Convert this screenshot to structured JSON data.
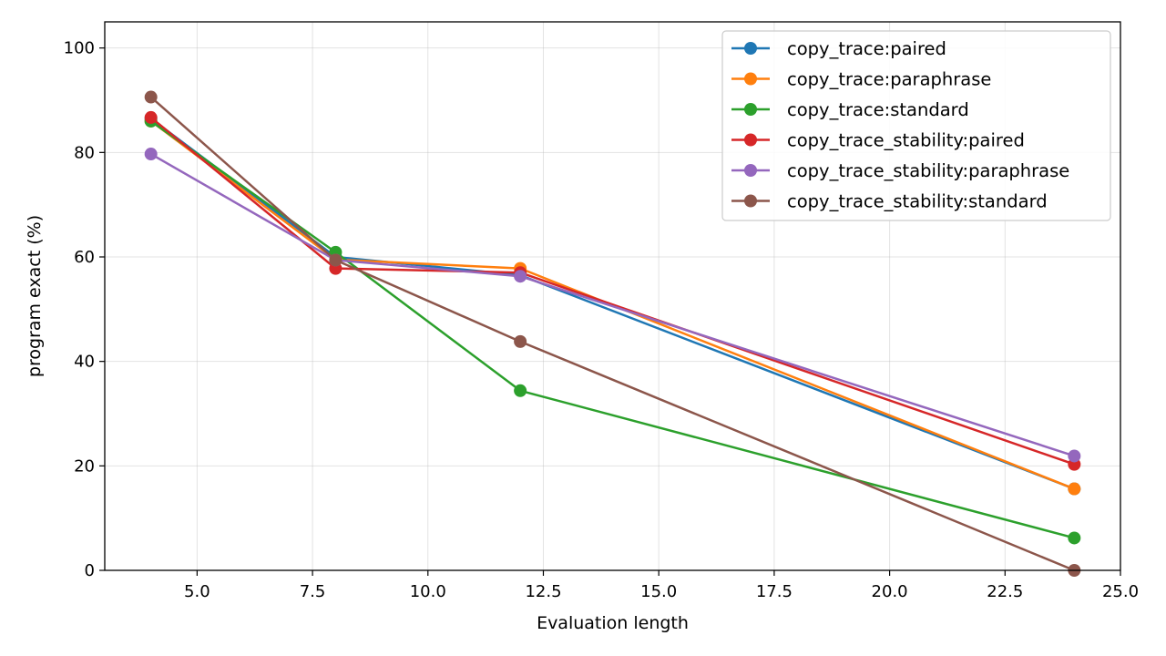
{
  "chart_data": {
    "type": "line",
    "title": "",
    "xlabel": "Evaluation length",
    "ylabel": "program exact (%)",
    "xlim": [
      3,
      25
    ],
    "ylim": [
      0,
      105
    ],
    "xticks": [
      5.0,
      7.5,
      10.0,
      12.5,
      15.0,
      17.5,
      20.0,
      22.5,
      25.0
    ],
    "xtick_labels": [
      "5.0",
      "7.5",
      "10.0",
      "12.5",
      "15.0",
      "17.5",
      "20.0",
      "22.5",
      "25.0"
    ],
    "yticks": [
      0,
      20,
      40,
      60,
      80,
      100
    ],
    "ytick_labels": [
      "0",
      "20",
      "40",
      "60",
      "80",
      "100"
    ],
    "grid": true,
    "legend_position": "top-right",
    "x": [
      4,
      8,
      12,
      24
    ],
    "series": [
      {
        "name": "copy_trace:paired",
        "color": "#1f77b4",
        "values": [
          86.5,
          60.0,
          56.5,
          15.6
        ]
      },
      {
        "name": "copy_trace:paraphrase",
        "color": "#ff7f0e",
        "values": [
          86.0,
          59.5,
          57.8,
          15.6
        ]
      },
      {
        "name": "copy_trace:standard",
        "color": "#2ca02c",
        "values": [
          86.0,
          60.9,
          34.4,
          6.2
        ]
      },
      {
        "name": "copy_trace_stability:paired",
        "color": "#d62728",
        "values": [
          86.7,
          57.8,
          57.0,
          20.3
        ]
      },
      {
        "name": "copy_trace_stability:paraphrase",
        "color": "#9467bd",
        "values": [
          79.7,
          59.4,
          56.3,
          21.9
        ]
      },
      {
        "name": "copy_trace_stability:standard",
        "color": "#8c564b",
        "values": [
          90.6,
          59.4,
          43.8,
          0.0
        ]
      }
    ]
  }
}
